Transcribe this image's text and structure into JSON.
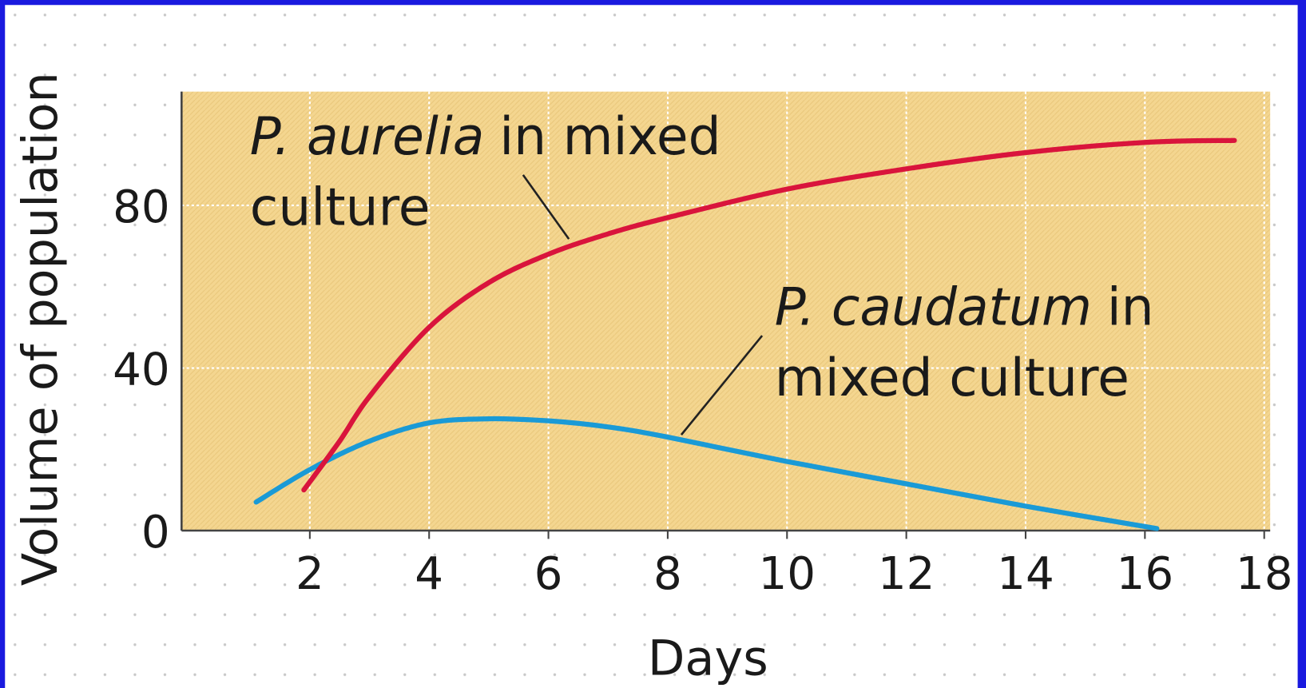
{
  "chart_data": {
    "type": "line",
    "x_label": "Days",
    "y_label": "Volume of population",
    "xlim": [
      -0.15,
      18.1
    ],
    "ylim": [
      0,
      108
    ],
    "xticks": [
      2,
      4,
      6,
      8,
      10,
      12,
      14,
      16,
      18
    ],
    "yticks": [
      0,
      40,
      80
    ],
    "grid": true,
    "series": [
      {
        "name": "P. aurelia in mixed culture",
        "color": "#d9143c",
        "x": [
          1.9,
          2.5,
          3,
          4,
          5,
          6,
          7,
          8,
          10,
          12,
          14,
          16,
          17.5
        ],
        "values": [
          10,
          22,
          33,
          50,
          61,
          68,
          73,
          77,
          84,
          89,
          93,
          95.5,
          96
        ]
      },
      {
        "name": "P. caudatum in mixed culture",
        "color": "#1a9ad6",
        "x": [
          1.1,
          2,
          3,
          4,
          5,
          6,
          7,
          8,
          10,
          12,
          14,
          16.2
        ],
        "values": [
          7,
          15,
          22,
          26.5,
          27.5,
          27,
          25.5,
          23,
          17,
          11.5,
          6,
          0.5
        ]
      }
    ],
    "annotations": [
      [
        "P. aurelia",
        "in mixed",
        "culture"
      ],
      [
        "P. caudatum",
        "in",
        "mixed culture"
      ]
    ]
  }
}
